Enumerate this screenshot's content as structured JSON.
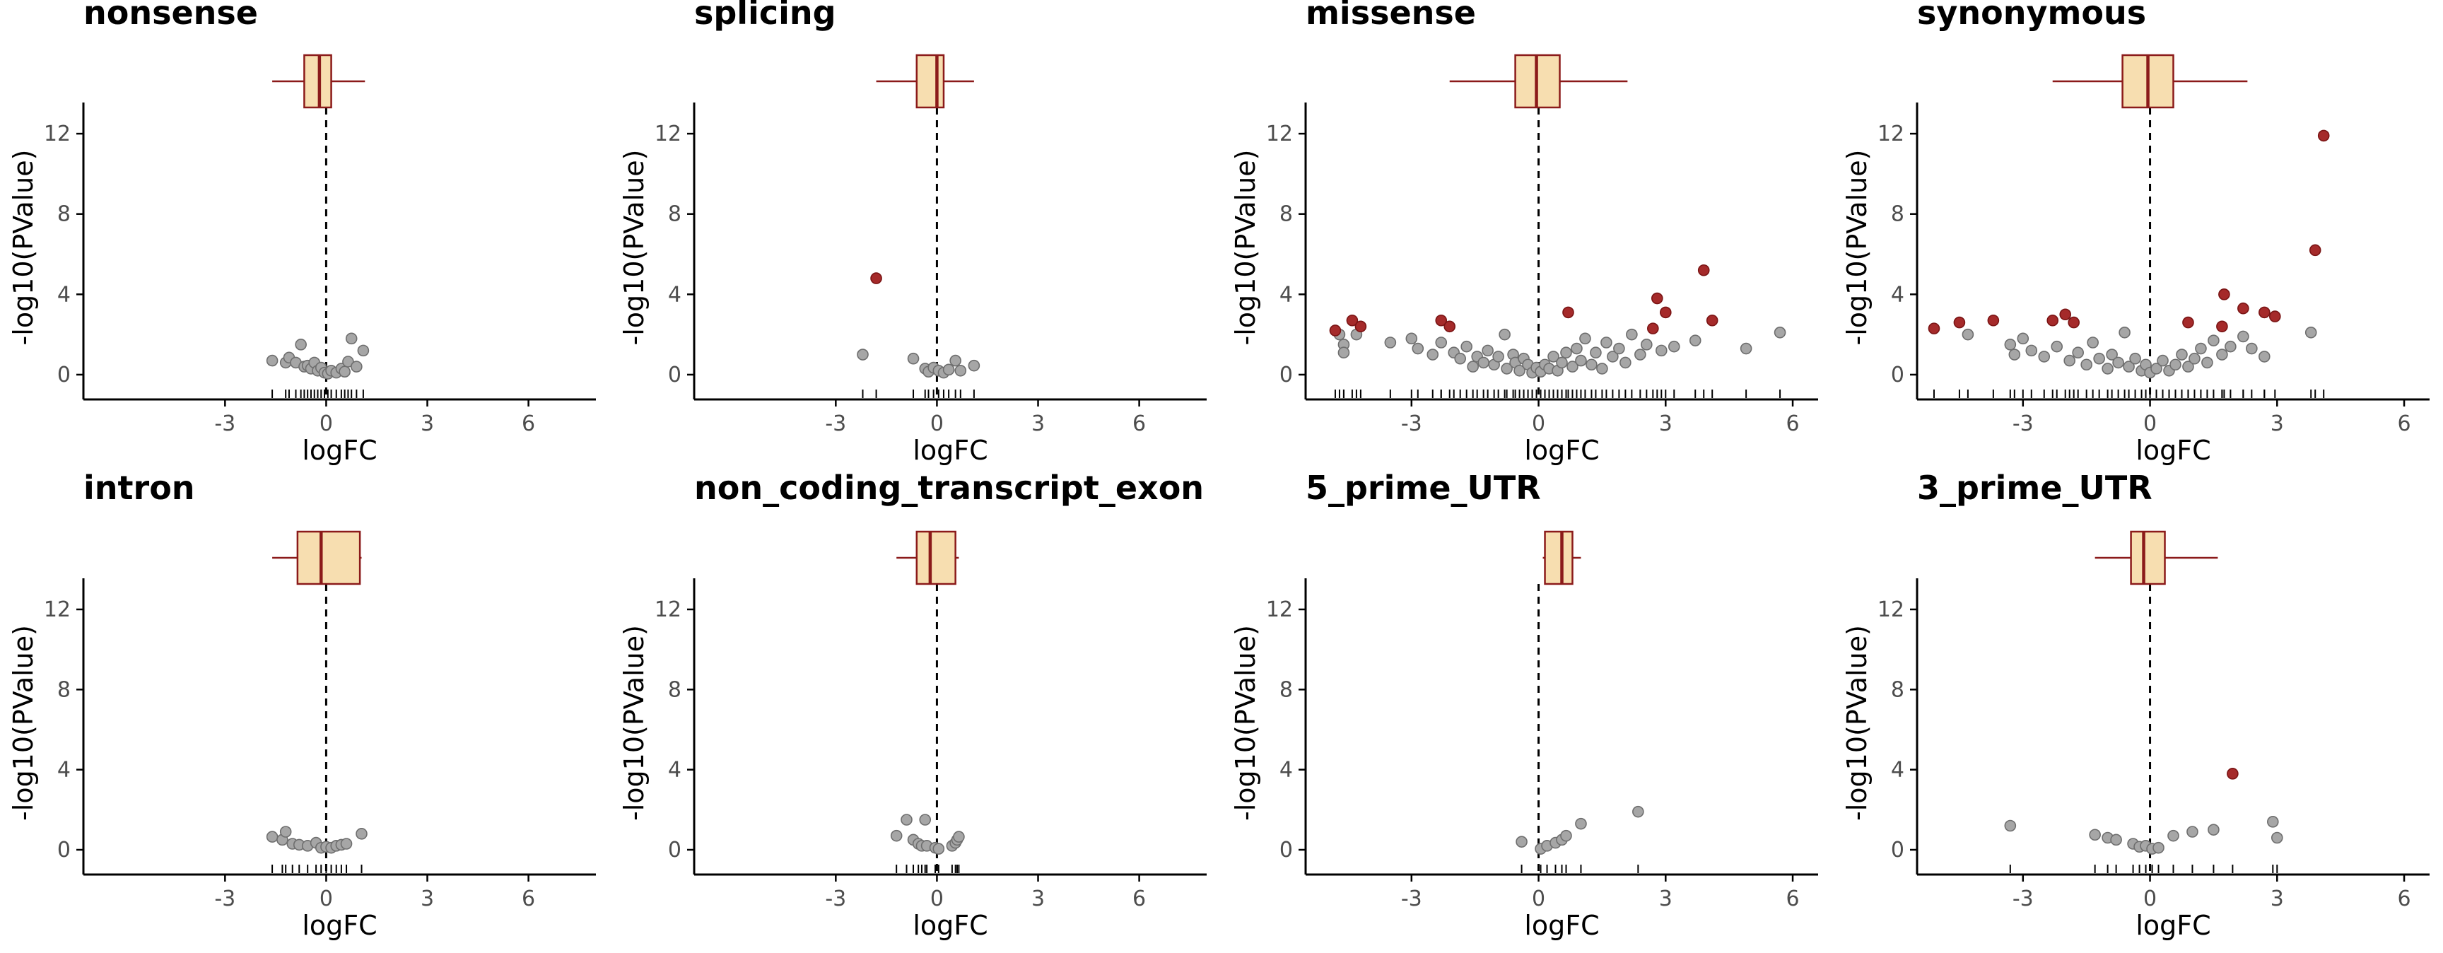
{
  "colors": {
    "point_fill": "#a6a6a6",
    "point_stroke": "#6e6e6e",
    "highlight_fill": "#a52a2a",
    "box_fill": "#f7deb0",
    "box_stroke": "#8b1a1a",
    "axis": "#000000",
    "tick_label": "#4d4d4d"
  },
  "chart_data": [
    {
      "type": "scatter",
      "title": "nonsense",
      "xlabel": "logFC",
      "ylabel": "-log10(PValue)",
      "xlim": [
        -7.2,
        8.0
      ],
      "ylim": [
        -0.6,
        13.2
      ],
      "xticks": [
        -3,
        0,
        3,
        6
      ],
      "yticks": [
        0,
        4,
        8,
        12
      ],
      "box": {
        "min": -1.6,
        "q1": -0.65,
        "median": -0.2,
        "q3": 0.15,
        "max": 1.15
      },
      "points": [
        {
          "x": -1.6,
          "y": 0.7
        },
        {
          "x": -1.2,
          "y": 0.6
        },
        {
          "x": -1.1,
          "y": 0.85
        },
        {
          "x": -0.9,
          "y": 0.6
        },
        {
          "x": -0.75,
          "y": 1.5
        },
        {
          "x": -0.65,
          "y": 0.4
        },
        {
          "x": -0.55,
          "y": 0.45
        },
        {
          "x": -0.45,
          "y": 0.3
        },
        {
          "x": -0.35,
          "y": 0.6
        },
        {
          "x": -0.25,
          "y": 0.2
        },
        {
          "x": -0.15,
          "y": 0.35
        },
        {
          "x": -0.05,
          "y": 0.1
        },
        {
          "x": 0.05,
          "y": 0.05
        },
        {
          "x": 0.15,
          "y": 0.2
        },
        {
          "x": 0.3,
          "y": 0.1
        },
        {
          "x": 0.45,
          "y": 0.3
        },
        {
          "x": 0.55,
          "y": 0.15
        },
        {
          "x": 0.65,
          "y": 0.65
        },
        {
          "x": 0.75,
          "y": 1.8
        },
        {
          "x": 0.9,
          "y": 0.4
        },
        {
          "x": 1.1,
          "y": 1.2
        }
      ],
      "highlighted": []
    },
    {
      "type": "scatter",
      "title": "splicing",
      "xlabel": "logFC",
      "ylabel": "-log10(PValue)",
      "xlim": [
        -7.2,
        8.0
      ],
      "ylim": [
        -0.6,
        13.2
      ],
      "xticks": [
        -3,
        0,
        3,
        6
      ],
      "yticks": [
        0,
        4,
        8,
        12
      ],
      "box": {
        "min": -1.8,
        "q1": -0.6,
        "median": 0.0,
        "q3": 0.2,
        "max": 1.1
      },
      "points": [
        {
          "x": -2.2,
          "y": 1.0
        },
        {
          "x": -0.7,
          "y": 0.8
        },
        {
          "x": -0.35,
          "y": 0.3
        },
        {
          "x": -0.25,
          "y": 0.15
        },
        {
          "x": -0.1,
          "y": 0.35
        },
        {
          "x": 0.05,
          "y": 0.2
        },
        {
          "x": 0.2,
          "y": 0.1
        },
        {
          "x": 0.35,
          "y": 0.25
        },
        {
          "x": 0.55,
          "y": 0.7
        },
        {
          "x": 0.7,
          "y": 0.2
        },
        {
          "x": 1.1,
          "y": 0.45
        }
      ],
      "highlighted": [
        {
          "x": -1.8,
          "y": 4.8
        }
      ]
    },
    {
      "type": "scatter",
      "title": "missense",
      "xlabel": "logFC",
      "ylabel": "-log10(PValue)",
      "xlim": [
        -5.5,
        6.6
      ],
      "ylim": [
        -0.6,
        13.2
      ],
      "xticks": [
        -3,
        0,
        3,
        6
      ],
      "yticks": [
        0,
        4,
        8,
        12
      ],
      "box": {
        "min": -2.1,
        "q1": -0.55,
        "median": -0.05,
        "q3": 0.5,
        "max": 2.1
      },
      "points": [
        {
          "x": -4.7,
          "y": 2.0
        },
        {
          "x": -4.6,
          "y": 1.5
        },
        {
          "x": -4.6,
          "y": 1.1
        },
        {
          "x": -4.3,
          "y": 2.0
        },
        {
          "x": -3.5,
          "y": 1.6
        },
        {
          "x": -3.0,
          "y": 1.8
        },
        {
          "x": -2.85,
          "y": 1.3
        },
        {
          "x": -2.5,
          "y": 1.0
        },
        {
          "x": -2.3,
          "y": 1.6
        },
        {
          "x": -2.0,
          "y": 1.1
        },
        {
          "x": -1.85,
          "y": 0.8
        },
        {
          "x": -1.7,
          "y": 1.4
        },
        {
          "x": -1.55,
          "y": 0.4
        },
        {
          "x": -1.45,
          "y": 0.9
        },
        {
          "x": -1.3,
          "y": 0.6
        },
        {
          "x": -1.2,
          "y": 1.2
        },
        {
          "x": -1.05,
          "y": 0.5
        },
        {
          "x": -0.95,
          "y": 0.9
        },
        {
          "x": -0.8,
          "y": 2.0
        },
        {
          "x": -0.75,
          "y": 0.3
        },
        {
          "x": -0.6,
          "y": 1.0
        },
        {
          "x": -0.55,
          "y": 0.6
        },
        {
          "x": -0.45,
          "y": 0.2
        },
        {
          "x": -0.35,
          "y": 0.8
        },
        {
          "x": -0.25,
          "y": 0.5
        },
        {
          "x": -0.15,
          "y": 0.1
        },
        {
          "x": -0.05,
          "y": 0.35
        },
        {
          "x": 0.05,
          "y": 0.15
        },
        {
          "x": 0.15,
          "y": 0.5
        },
        {
          "x": 0.25,
          "y": 0.3
        },
        {
          "x": 0.35,
          "y": 0.9
        },
        {
          "x": 0.45,
          "y": 0.2
        },
        {
          "x": 0.55,
          "y": 0.6
        },
        {
          "x": 0.65,
          "y": 1.1
        },
        {
          "x": 0.8,
          "y": 0.4
        },
        {
          "x": 0.9,
          "y": 1.3
        },
        {
          "x": 1.0,
          "y": 0.7
        },
        {
          "x": 1.1,
          "y": 1.8
        },
        {
          "x": 1.25,
          "y": 0.5
        },
        {
          "x": 1.35,
          "y": 1.1
        },
        {
          "x": 1.5,
          "y": 0.3
        },
        {
          "x": 1.6,
          "y": 1.6
        },
        {
          "x": 1.75,
          "y": 0.9
        },
        {
          "x": 1.9,
          "y": 1.3
        },
        {
          "x": 2.05,
          "y": 0.6
        },
        {
          "x": 2.2,
          "y": 2.0
        },
        {
          "x": 2.4,
          "y": 1.0
        },
        {
          "x": 2.55,
          "y": 1.5
        },
        {
          "x": 2.9,
          "y": 1.2
        },
        {
          "x": 3.2,
          "y": 1.4
        },
        {
          "x": 3.7,
          "y": 1.7
        },
        {
          "x": 4.9,
          "y": 1.3
        },
        {
          "x": 5.7,
          "y": 2.1
        }
      ],
      "highlighted": [
        {
          "x": -4.8,
          "y": 2.2
        },
        {
          "x": -4.4,
          "y": 2.7
        },
        {
          "x": -4.2,
          "y": 2.4
        },
        {
          "x": -2.3,
          "y": 2.7
        },
        {
          "x": -2.1,
          "y": 2.4
        },
        {
          "x": 0.7,
          "y": 3.1
        },
        {
          "x": 2.7,
          "y": 2.3
        },
        {
          "x": 2.8,
          "y": 3.8
        },
        {
          "x": 3.0,
          "y": 3.1
        },
        {
          "x": 3.9,
          "y": 5.2
        },
        {
          "x": 4.1,
          "y": 2.7
        }
      ]
    },
    {
      "type": "scatter",
      "title": "synonymous",
      "xlabel": "logFC",
      "ylabel": "-log10(PValue)",
      "xlim": [
        -5.5,
        6.6
      ],
      "ylim": [
        -0.6,
        13.2
      ],
      "xticks": [
        -3,
        0,
        3,
        6
      ],
      "yticks": [
        0,
        4,
        8,
        12
      ],
      "box": {
        "min": -2.3,
        "q1": -0.65,
        "median": -0.05,
        "q3": 0.55,
        "max": 2.3
      },
      "points": [
        {
          "x": -4.3,
          "y": 2.0
        },
        {
          "x": -3.3,
          "y": 1.5
        },
        {
          "x": -3.2,
          "y": 1.0
        },
        {
          "x": -3.0,
          "y": 1.8
        },
        {
          "x": -2.8,
          "y": 1.2
        },
        {
          "x": -2.5,
          "y": 0.9
        },
        {
          "x": -2.2,
          "y": 1.4
        },
        {
          "x": -1.9,
          "y": 0.7
        },
        {
          "x": -1.7,
          "y": 1.1
        },
        {
          "x": -1.5,
          "y": 0.5
        },
        {
          "x": -1.35,
          "y": 1.6
        },
        {
          "x": -1.2,
          "y": 0.8
        },
        {
          "x": -1.0,
          "y": 0.3
        },
        {
          "x": -0.9,
          "y": 1.0
        },
        {
          "x": -0.75,
          "y": 0.6
        },
        {
          "x": -0.6,
          "y": 2.1
        },
        {
          "x": -0.5,
          "y": 0.4
        },
        {
          "x": -0.35,
          "y": 0.8
        },
        {
          "x": -0.2,
          "y": 0.2
        },
        {
          "x": -0.1,
          "y": 0.5
        },
        {
          "x": 0.0,
          "y": 0.1
        },
        {
          "x": 0.15,
          "y": 0.3
        },
        {
          "x": 0.3,
          "y": 0.7
        },
        {
          "x": 0.45,
          "y": 0.2
        },
        {
          "x": 0.6,
          "y": 0.5
        },
        {
          "x": 0.75,
          "y": 1.0
        },
        {
          "x": 0.9,
          "y": 0.4
        },
        {
          "x": 1.05,
          "y": 0.8
        },
        {
          "x": 1.2,
          "y": 1.3
        },
        {
          "x": 1.35,
          "y": 0.6
        },
        {
          "x": 1.5,
          "y": 1.7
        },
        {
          "x": 1.7,
          "y": 1.0
        },
        {
          "x": 1.9,
          "y": 1.4
        },
        {
          "x": 2.2,
          "y": 1.9
        },
        {
          "x": 2.4,
          "y": 1.3
        },
        {
          "x": 2.7,
          "y": 0.9
        },
        {
          "x": 3.8,
          "y": 2.1
        }
      ],
      "highlighted": [
        {
          "x": -5.1,
          "y": 2.3
        },
        {
          "x": -4.5,
          "y": 2.6
        },
        {
          "x": -3.7,
          "y": 2.7
        },
        {
          "x": -2.3,
          "y": 2.7
        },
        {
          "x": -2.0,
          "y": 3.0
        },
        {
          "x": -1.8,
          "y": 2.6
        },
        {
          "x": 0.9,
          "y": 2.6
        },
        {
          "x": 1.7,
          "y": 2.4
        },
        {
          "x": 1.75,
          "y": 4.0
        },
        {
          "x": 2.2,
          "y": 3.3
        },
        {
          "x": 2.7,
          "y": 3.1
        },
        {
          "x": 2.95,
          "y": 2.9
        },
        {
          "x": 3.9,
          "y": 6.2
        },
        {
          "x": 4.1,
          "y": 11.9
        }
      ]
    },
    {
      "type": "scatter",
      "title": "intron",
      "xlabel": "logFC",
      "ylabel": "-log10(PValue)",
      "xlim": [
        -7.2,
        8.0
      ],
      "ylim": [
        -0.6,
        13.2
      ],
      "xticks": [
        -3,
        0,
        3,
        6
      ],
      "yticks": [
        0,
        4,
        8,
        12
      ],
      "box": {
        "min": -1.6,
        "q1": -0.85,
        "median": -0.15,
        "q3": 1.0,
        "max": 1.05
      },
      "points": [
        {
          "x": -1.6,
          "y": 0.65
        },
        {
          "x": -1.3,
          "y": 0.5
        },
        {
          "x": -1.2,
          "y": 0.9
        },
        {
          "x": -1.0,
          "y": 0.3
        },
        {
          "x": -0.8,
          "y": 0.25
        },
        {
          "x": -0.55,
          "y": 0.2
        },
        {
          "x": -0.3,
          "y": 0.35
        },
        {
          "x": -0.15,
          "y": 0.1
        },
        {
          "x": 0.0,
          "y": 0.15
        },
        {
          "x": 0.15,
          "y": 0.1
        },
        {
          "x": 0.3,
          "y": 0.2
        },
        {
          "x": 0.45,
          "y": 0.25
        },
        {
          "x": 0.6,
          "y": 0.3
        },
        {
          "x": 1.05,
          "y": 0.8
        }
      ],
      "highlighted": []
    },
    {
      "type": "scatter",
      "title": "non_coding_transcript_exon",
      "xlabel": "logFC",
      "ylabel": "-log10(PValue)",
      "xlim": [
        -7.2,
        8.0
      ],
      "ylim": [
        -0.6,
        13.2
      ],
      "xticks": [
        -3,
        0,
        3,
        6
      ],
      "yticks": [
        0,
        4,
        8,
        12
      ],
      "box": {
        "min": -1.2,
        "q1": -0.6,
        "median": -0.2,
        "q3": 0.55,
        "max": 0.65
      },
      "points": [
        {
          "x": -1.2,
          "y": 0.7
        },
        {
          "x": -0.9,
          "y": 1.5
        },
        {
          "x": -0.7,
          "y": 0.5
        },
        {
          "x": -0.55,
          "y": 0.3
        },
        {
          "x": -0.45,
          "y": 0.2
        },
        {
          "x": -0.35,
          "y": 1.5
        },
        {
          "x": -0.3,
          "y": 0.2
        },
        {
          "x": -0.05,
          "y": 0.1
        },
        {
          "x": 0.05,
          "y": 0.05
        },
        {
          "x": 0.45,
          "y": 0.2
        },
        {
          "x": 0.55,
          "y": 0.35
        },
        {
          "x": 0.6,
          "y": 0.5
        },
        {
          "x": 0.65,
          "y": 0.65
        }
      ],
      "highlighted": []
    },
    {
      "type": "scatter",
      "title": "5_prime_UTR",
      "xlabel": "logFC",
      "ylabel": "-log10(PValue)",
      "xlim": [
        -5.5,
        6.6
      ],
      "ylim": [
        -0.6,
        13.2
      ],
      "xticks": [
        -3,
        0,
        3,
        6
      ],
      "yticks": [
        0,
        4,
        8,
        12
      ],
      "box": {
        "min": 0.1,
        "q1": 0.15,
        "median": 0.55,
        "q3": 0.8,
        "max": 1.0
      },
      "points": [
        {
          "x": -0.4,
          "y": 0.4
        },
        {
          "x": 0.05,
          "y": 0.05
        },
        {
          "x": 0.2,
          "y": 0.2
        },
        {
          "x": 0.4,
          "y": 0.35
        },
        {
          "x": 0.55,
          "y": 0.5
        },
        {
          "x": 0.65,
          "y": 0.7
        },
        {
          "x": 1.0,
          "y": 1.3
        },
        {
          "x": 2.35,
          "y": 1.9
        }
      ],
      "highlighted": []
    },
    {
      "type": "scatter",
      "title": "3_prime_UTR",
      "xlabel": "logFC",
      "ylabel": "-log10(PValue)",
      "xlim": [
        -5.5,
        6.6
      ],
      "ylim": [
        -0.6,
        13.2
      ],
      "xticks": [
        -3,
        0,
        3,
        6
      ],
      "yticks": [
        0,
        4,
        8,
        12
      ],
      "box": {
        "min": -1.3,
        "q1": -0.45,
        "median": -0.15,
        "q3": 0.35,
        "max": 1.6
      },
      "points": [
        {
          "x": -3.3,
          "y": 1.2
        },
        {
          "x": -1.3,
          "y": 0.75
        },
        {
          "x": -1.0,
          "y": 0.6
        },
        {
          "x": -0.8,
          "y": 0.5
        },
        {
          "x": -0.4,
          "y": 0.3
        },
        {
          "x": -0.25,
          "y": 0.15
        },
        {
          "x": -0.1,
          "y": 0.2
        },
        {
          "x": 0.05,
          "y": 0.05
        },
        {
          "x": 0.2,
          "y": 0.1
        },
        {
          "x": 0.55,
          "y": 0.7
        },
        {
          "x": 1.0,
          "y": 0.9
        },
        {
          "x": 1.5,
          "y": 1.0
        },
        {
          "x": 2.9,
          "y": 1.4
        },
        {
          "x": 3.0,
          "y": 0.6
        }
      ],
      "highlighted": [
        {
          "x": 1.95,
          "y": 3.8
        }
      ]
    }
  ]
}
